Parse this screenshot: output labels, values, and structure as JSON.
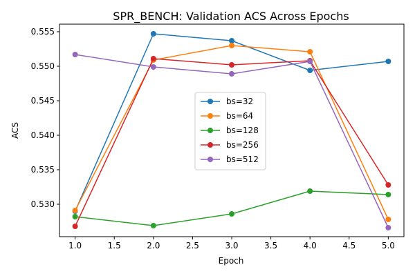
{
  "chart_data": {
    "type": "line",
    "title": "SPR_BENCH: Validation ACS Across Epochs",
    "xlabel": "Epoch",
    "ylabel": "ACS",
    "x": [
      1,
      2,
      3,
      4,
      5
    ],
    "xlim": [
      0.8,
      5.2
    ],
    "ylim": [
      0.5253,
      0.5561
    ],
    "xticks": [
      1.0,
      1.5,
      2.0,
      2.5,
      3.0,
      3.5,
      4.0,
      4.5,
      5.0
    ],
    "xtick_labels": [
      "1.0",
      "1.5",
      "2.0",
      "2.5",
      "3.0",
      "3.5",
      "4.0",
      "4.5",
      "5.0"
    ],
    "yticks": [
      0.53,
      0.535,
      0.54,
      0.545,
      0.55,
      0.555
    ],
    "ytick_labels": [
      "0.530",
      "0.535",
      "0.540",
      "0.545",
      "0.550",
      "0.555"
    ],
    "grid": false,
    "legend_position": "center",
    "series": [
      {
        "name": "bs=32",
        "color": "#1f77b4",
        "values": [
          0.529,
          0.5547,
          0.5537,
          0.5494,
          0.5507
        ]
      },
      {
        "name": "bs=64",
        "color": "#ff7f0e",
        "values": [
          0.5291,
          0.5509,
          0.553,
          0.5521,
          0.5278
        ]
      },
      {
        "name": "bs=128",
        "color": "#2ca02c",
        "values": [
          0.5282,
          0.5269,
          0.5286,
          0.5319,
          0.5314
        ]
      },
      {
        "name": "bs=256",
        "color": "#d62728",
        "values": [
          0.5268,
          0.5511,
          0.5502,
          0.5508,
          0.5328
        ]
      },
      {
        "name": "bs=512",
        "color": "#9467bd",
        "values": [
          0.5517,
          0.5499,
          0.5489,
          0.5507,
          0.5266
        ]
      }
    ]
  }
}
